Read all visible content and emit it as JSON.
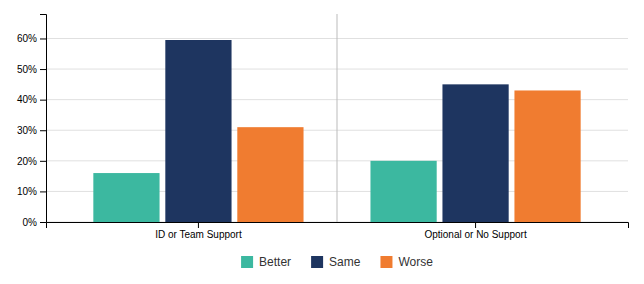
{
  "chart_data": {
    "type": "bar",
    "categories": [
      "ID or Team Support",
      "Optional or No Support"
    ],
    "series": [
      {
        "name": "Better",
        "color": "#3cb8a0",
        "values": [
          0.16,
          0.2
        ]
      },
      {
        "name": "Same",
        "color": "#1e3560",
        "values": [
          0.595,
          0.45
        ]
      },
      {
        "name": "Worse",
        "color": "#f07c30",
        "values": [
          0.31,
          0.43
        ]
      }
    ],
    "ylim": [
      0,
      0.68
    ],
    "yticks": [
      {
        "value": 0,
        "label": "0%"
      },
      {
        "value": 0.1,
        "label": "10%"
      },
      {
        "value": 0.2,
        "label": "20%"
      },
      {
        "value": 0.3,
        "label": "30%"
      },
      {
        "value": 0.4,
        "label": "40%"
      },
      {
        "value": 0.5,
        "label": "50%"
      },
      {
        "value": 0.6,
        "label": "60%"
      }
    ],
    "grid": true,
    "legend": "bottom"
  }
}
